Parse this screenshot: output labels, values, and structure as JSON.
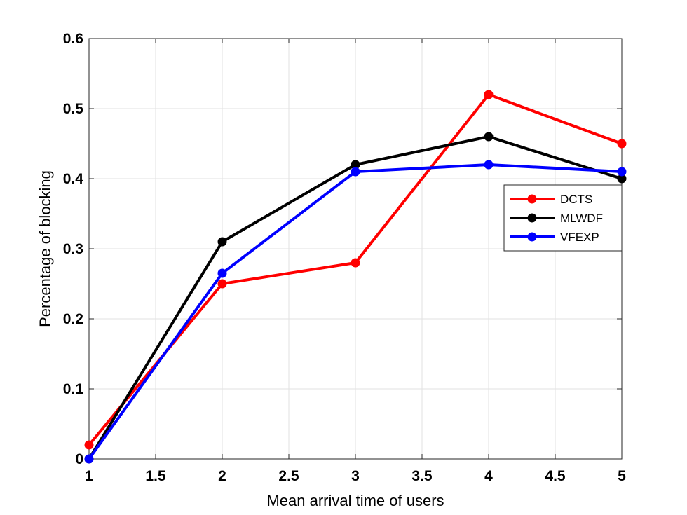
{
  "chart_data": {
    "type": "line",
    "title": "",
    "xlabel": "Mean arrival time of users",
    "ylabel": "Percentage of blocking",
    "xlim": [
      1,
      5
    ],
    "ylim": [
      0,
      0.6
    ],
    "xticks": [
      1,
      1.5,
      2,
      2.5,
      3,
      3.5,
      4,
      4.5,
      5
    ],
    "xtick_labels": [
      "1",
      "1.5",
      "2",
      "2.5",
      "3",
      "3.5",
      "4",
      "4.5",
      "5"
    ],
    "yticks": [
      0,
      0.1,
      0.2,
      0.3,
      0.4,
      0.5,
      0.6
    ],
    "ytick_labels": [
      "0",
      "0.1",
      "0.2",
      "0.3",
      "0.4",
      "0.5",
      "0.6"
    ],
    "grid": true,
    "legend_position": "right",
    "x": [
      1,
      2,
      3,
      4,
      5
    ],
    "series": [
      {
        "name": "DCTS",
        "color": "#ff0000",
        "values": [
          0.02,
          0.25,
          0.28,
          0.52,
          0.45
        ]
      },
      {
        "name": "MLWDF",
        "color": "#000000",
        "values": [
          0.0,
          0.31,
          0.42,
          0.46,
          0.4
        ]
      },
      {
        "name": "VFEXP",
        "color": "#0000ff",
        "values": [
          0.0,
          0.265,
          0.41,
          0.42,
          0.41
        ]
      }
    ]
  }
}
